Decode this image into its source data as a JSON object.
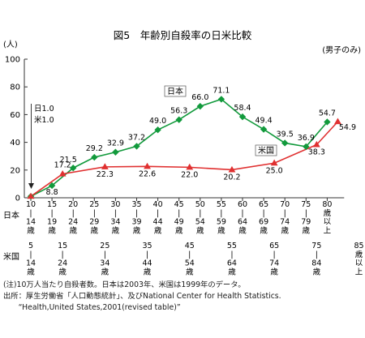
{
  "chart_data": {
    "type": "line",
    "title": "図5　年齢別自殺率の日米比較",
    "ylabel": "(人)",
    "note_top_right": "(男子のみ)",
    "ylim": [
      0,
      100
    ],
    "yticks": [
      "0",
      "20",
      "40",
      "60",
      "80",
      "100"
    ],
    "grid": false,
    "x_rows": [
      {
        "label": "日本",
        "categories": [
          [
            "10",
            "|",
            "14",
            "歳"
          ],
          [
            "15",
            "|",
            "19",
            "歳"
          ],
          [
            "20",
            "|",
            "24",
            "歳"
          ],
          [
            "25",
            "|",
            "29",
            "歳"
          ],
          [
            "30",
            "|",
            "34",
            "歳"
          ],
          [
            "35",
            "|",
            "39",
            "歳"
          ],
          [
            "40",
            "|",
            "44",
            "歳"
          ],
          [
            "45",
            "|",
            "49",
            "歳"
          ],
          [
            "50",
            "|",
            "54",
            "歳"
          ],
          [
            "55",
            "|",
            "59",
            "歳"
          ],
          [
            "60",
            "|",
            "64",
            "歳"
          ],
          [
            "65",
            "|",
            "69",
            "歳"
          ],
          [
            "70",
            "|",
            "74",
            "歳"
          ],
          [
            "75",
            "|",
            "79",
            "歳"
          ],
          [
            "80",
            "歳",
            "以",
            "上"
          ]
        ]
      },
      {
        "label": "米国",
        "categories": [
          [
            "5",
            "|",
            "14",
            "歳"
          ],
          [
            "15",
            "|",
            "24",
            "歳"
          ],
          [
            "25",
            "|",
            "34",
            "歳"
          ],
          [
            "35",
            "|",
            "44",
            "歳"
          ],
          [
            "45",
            "|",
            "54",
            "歳"
          ],
          [
            "55",
            "|",
            "64",
            "歳"
          ],
          [
            "65",
            "|",
            "74",
            "歳"
          ],
          [
            "75",
            "|",
            "84",
            "歳"
          ],
          [
            "85",
            "歳",
            "以",
            "上"
          ]
        ]
      }
    ],
    "series": [
      {
        "name": "日本",
        "color": "#129a3c",
        "marker": "diamond",
        "x": [
          0,
          1,
          2,
          3,
          4,
          5,
          6,
          7,
          8,
          9,
          10,
          11,
          12,
          13,
          14
        ],
        "values": [
          1.0,
          8.8,
          21.5,
          29.2,
          32.9,
          37.2,
          49.0,
          56.3,
          66.0,
          71.1,
          58.4,
          49.4,
          39.5,
          36.9,
          54.7
        ],
        "labels": [
          "日1.0",
          "8.8",
          "21.5",
          "29.2",
          "32.9",
          "37.2",
          "49.0",
          "56.3",
          "66.0",
          "71.1",
          "58.4",
          "49.4",
          "39.5",
          "36.9",
          "54.7"
        ]
      },
      {
        "name": "米国",
        "color": "#e03030",
        "marker": "triangle",
        "x": [
          0,
          1.5,
          3.5,
          5.5,
          7.5,
          9.5,
          11.5,
          13.5,
          14.5
        ],
        "values": [
          1.0,
          17.2,
          22.3,
          22.6,
          22.0,
          20.2,
          25.0,
          38.3,
          54.9
        ],
        "labels": [
          "米1.0",
          "17.2",
          "22.3",
          "22.6",
          "22.0",
          "20.2",
          "25.0",
          "38.3",
          "54.9"
        ]
      }
    ]
  },
  "notes": [
    "(注)10万人当たり自殺者数。日本は2003年、米国は1999年のデータ。",
    "出所：厚生労働省「人口動態統計」、及びNational Center for Health Statistics.",
    "　　“Health,United States,2001(revised table)”"
  ]
}
